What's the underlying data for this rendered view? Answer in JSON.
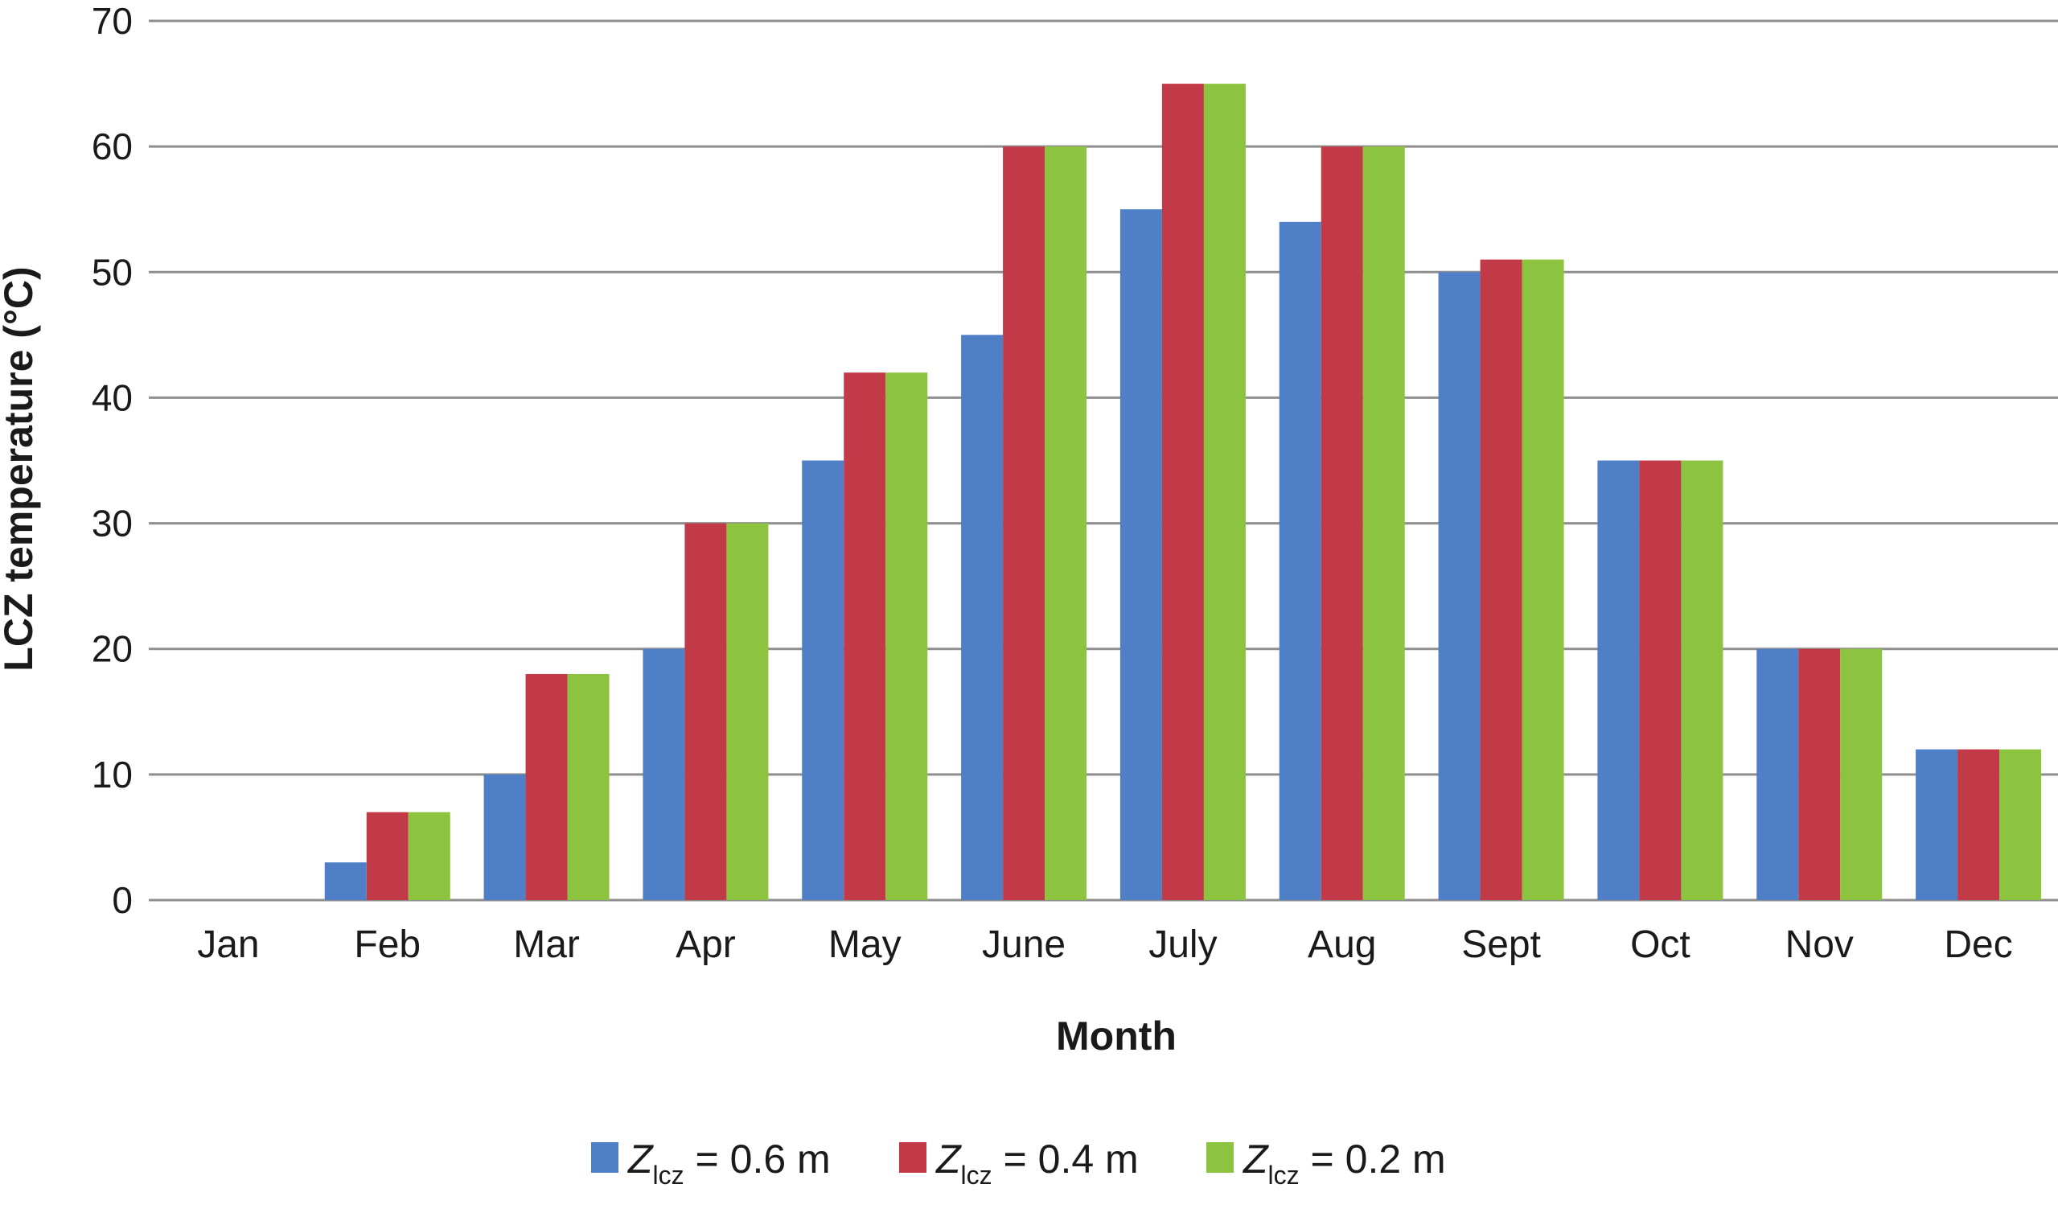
{
  "chart_data": {
    "type": "bar",
    "categories": [
      "Jan",
      "Feb",
      "Mar",
      "Apr",
      "May",
      "June",
      "July",
      "Aug",
      "Sept",
      "Oct",
      "Nov",
      "Dec"
    ],
    "series": [
      {
        "name": "Z_lcz = 0.6 m",
        "symbol": "Z",
        "subscript": "lcz",
        "value_text": " = 0.6 m",
        "color": "#4f7fc6",
        "values": [
          0,
          3,
          10,
          20,
          35,
          45,
          55,
          54,
          50,
          35,
          20,
          12
        ]
      },
      {
        "name": "Z_lcz = 0.4 m",
        "symbol": "Z",
        "subscript": "lcz",
        "value_text": " = 0.4 m",
        "color": "#c23a48",
        "values": [
          0,
          7,
          18,
          30,
          42,
          60,
          65,
          60,
          51,
          35,
          20,
          12
        ]
      },
      {
        "name": "Z_lcz = 0.2 m",
        "symbol": "Z",
        "subscript": "lcz",
        "value_text": " = 0.2 m",
        "color": "#8dc43f",
        "values": [
          0,
          7,
          18,
          30,
          42,
          60,
          65,
          60,
          51,
          35,
          20,
          12
        ]
      }
    ],
    "title": "",
    "xlabel": "Month",
    "ylabel": "LCZ temperature (°C)",
    "ylim": [
      0,
      70
    ],
    "yticks": [
      0,
      10,
      20,
      30,
      40,
      50,
      60,
      70
    ],
    "grid": true,
    "legend_position": "bottom-center"
  },
  "colors": {
    "grid": "#8f8f8f",
    "axis": "#8f8f8f",
    "text": "#1a1a1a"
  }
}
